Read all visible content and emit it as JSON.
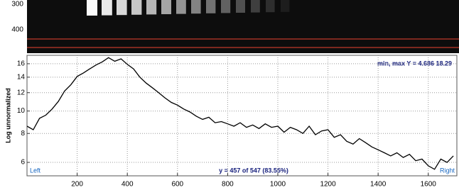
{
  "image": {
    "row_labels": [
      "300",
      "400"
    ]
  },
  "chart_data": {
    "type": "line",
    "y_label": "Log unnormalized",
    "annotations": {
      "min_max": "min, max Y = 4.686  18.29",
      "left": "Left",
      "right": "Right",
      "status": "y = 457 of 547  (83.55%)"
    },
    "x": [
      0,
      25,
      50,
      75,
      100,
      125,
      150,
      175,
      200,
      225,
      250,
      275,
      300,
      325,
      350,
      375,
      400,
      425,
      450,
      475,
      500,
      525,
      550,
      575,
      600,
      625,
      650,
      675,
      700,
      725,
      750,
      775,
      800,
      825,
      850,
      875,
      900,
      925,
      950,
      975,
      1000,
      1025,
      1050,
      1075,
      1100,
      1125,
      1150,
      1175,
      1200,
      1225,
      1250,
      1275,
      1300,
      1325,
      1350,
      1375,
      1400,
      1425,
      1450,
      1475,
      1500,
      1525,
      1550,
      1575,
      1600,
      1625,
      1650,
      1675,
      1700
    ],
    "series": [
      {
        "color": "#000000",
        "values": [
          8.6,
          8.3,
          9.3,
          9.6,
          10.2,
          11.0,
          12.2,
          13.0,
          14.1,
          14.6,
          15.2,
          15.8,
          16.3,
          17.0,
          16.4,
          16.8,
          15.9,
          15.2,
          14.0,
          13.2,
          12.6,
          12.0,
          11.4,
          10.9,
          10.6,
          10.2,
          9.9,
          9.5,
          9.2,
          9.4,
          8.9,
          9.0,
          8.8,
          8.6,
          8.9,
          8.5,
          8.7,
          8.4,
          8.8,
          8.5,
          8.6,
          8.1,
          8.5,
          8.3,
          8.0,
          8.6,
          7.9,
          8.2,
          8.3,
          7.7,
          7.9,
          7.4,
          7.2,
          7.6,
          7.3,
          7.0,
          6.8,
          6.6,
          6.4,
          6.6,
          6.3,
          6.5,
          6.1,
          6.2,
          5.8,
          5.6,
          6.2,
          6.0,
          6.4
        ]
      }
    ],
    "xlim": [
      0,
      1714
    ],
    "xticks": [
      200,
      400,
      600,
      800,
      1000,
      1200,
      1400,
      1600
    ],
    "ylim": [
      5.25,
      17.4
    ],
    "yticks": [
      6,
      8,
      10,
      12,
      14,
      16
    ],
    "log_y": true,
    "grid": true
  }
}
